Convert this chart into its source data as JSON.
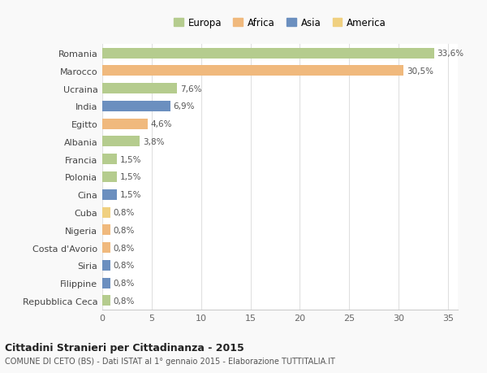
{
  "categories": [
    "Romania",
    "Marocco",
    "Ucraina",
    "India",
    "Egitto",
    "Albania",
    "Francia",
    "Polonia",
    "Cina",
    "Cuba",
    "Nigeria",
    "Costa d'Avorio",
    "Siria",
    "Filippine",
    "Repubblica Ceca"
  ],
  "values": [
    33.6,
    30.5,
    7.6,
    6.9,
    4.6,
    3.8,
    1.5,
    1.5,
    1.5,
    0.8,
    0.8,
    0.8,
    0.8,
    0.8,
    0.8
  ],
  "labels": [
    "33,6%",
    "30,5%",
    "7,6%",
    "6,9%",
    "4,6%",
    "3,8%",
    "1,5%",
    "1,5%",
    "1,5%",
    "0,8%",
    "0,8%",
    "0,8%",
    "0,8%",
    "0,8%",
    "0,8%"
  ],
  "colors": [
    "#b5cc8e",
    "#f0b97d",
    "#b5cc8e",
    "#6b8fbf",
    "#f0b97d",
    "#b5cc8e",
    "#b5cc8e",
    "#b5cc8e",
    "#6b8fbf",
    "#f0d080",
    "#f0b97d",
    "#f0b97d",
    "#6b8fbf",
    "#6b8fbf",
    "#b5cc8e"
  ],
  "legend_labels": [
    "Europa",
    "Africa",
    "Asia",
    "America"
  ],
  "legend_colors": [
    "#b5cc8e",
    "#f0b97d",
    "#6b8fbf",
    "#f0d080"
  ],
  "xlim": [
    0,
    36
  ],
  "xticks": [
    0,
    5,
    10,
    15,
    20,
    25,
    30,
    35
  ],
  "title": "Cittadini Stranieri per Cittadinanza - 2015",
  "subtitle": "COMUNE DI CETO (BS) - Dati ISTAT al 1° gennaio 2015 - Elaborazione TUTTITALIA.IT",
  "background_color": "#f9f9f9",
  "plot_bg_color": "#ffffff",
  "bar_height": 0.6,
  "grid_color": "#e0e0e0"
}
